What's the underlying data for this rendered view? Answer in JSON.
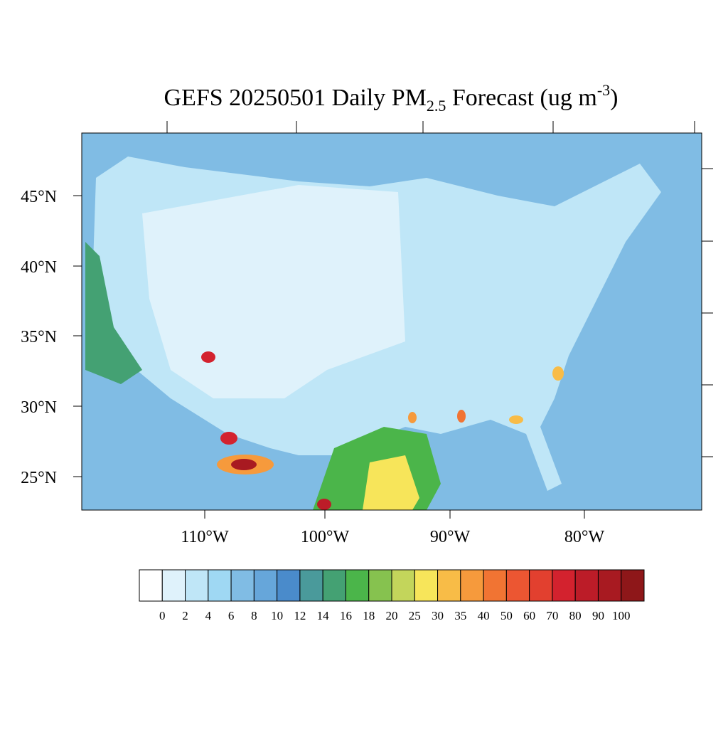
{
  "title": {
    "main": "GEFS 20250501 Daily PM",
    "sub": "2.5",
    "mid": " Forecast (ug m",
    "sup": "-3",
    "end": ")"
  },
  "lat_labels": [
    "45°N",
    "40°N",
    "35°N",
    "30°N",
    "25°N"
  ],
  "lon_labels": [
    "110°W",
    "100°W",
    "90°W",
    "80°W"
  ],
  "colorbar": {
    "levels": [
      0,
      2,
      4,
      6,
      8,
      10,
      12,
      14,
      16,
      18,
      20,
      25,
      30,
      35,
      40,
      50,
      60,
      70,
      80,
      90,
      100
    ],
    "colors": [
      "#ffffff",
      "#dff2fb",
      "#bfe6f7",
      "#9fd8f3",
      "#80bce4",
      "#66a6da",
      "#4a8bcb",
      "#4a9a9b",
      "#44a173",
      "#4bb54a",
      "#86c24f",
      "#c3d55b",
      "#f7e55a",
      "#f8bc47",
      "#f69a3c",
      "#f17433",
      "#ec5632",
      "#e2402f",
      "#d3222e",
      "#bc1c28",
      "#a81a21",
      "#8e1719"
    ]
  }
}
